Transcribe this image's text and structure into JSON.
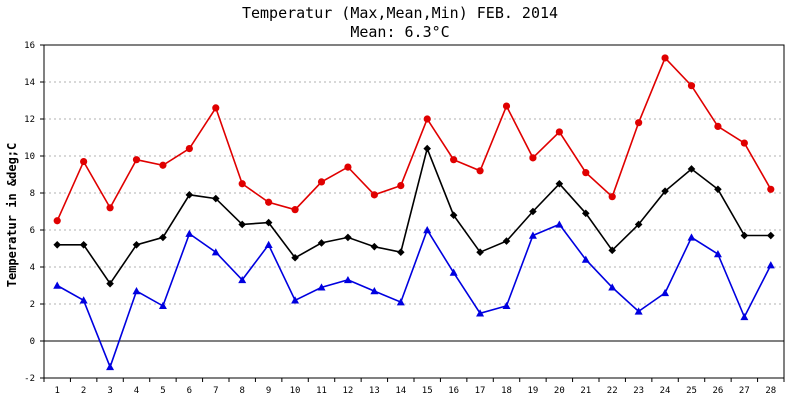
{
  "chart_data": {
    "type": "line",
    "title": "Temperatur (Max,Mean,Min) FEB. 2014",
    "subtitle": "Mean: 6.3°C",
    "ylabel": "Temperatur in &deg;C",
    "xlabel": "",
    "ylim": [
      -2,
      16
    ],
    "yticks": [
      "-2",
      "0",
      "2",
      "4",
      "6",
      "8",
      "10",
      "12",
      "14",
      "16"
    ],
    "grid": true,
    "categories": [
      "1",
      "2",
      "3",
      "4",
      "5",
      "6",
      "7",
      "8",
      "9",
      "10",
      "11",
      "12",
      "13",
      "14",
      "15",
      "16",
      "17",
      "18",
      "19",
      "20",
      "21",
      "22",
      "23",
      "24",
      "25",
      "26",
      "27",
      "28"
    ],
    "series": [
      {
        "key": "max",
        "color": "#e00000",
        "marker": "circle",
        "values": [
          6.5,
          9.7,
          7.2,
          9.8,
          9.5,
          10.4,
          12.6,
          8.5,
          7.5,
          7.1,
          8.6,
          9.4,
          7.9,
          8.4,
          12.0,
          9.8,
          9.2,
          12.7,
          9.9,
          11.3,
          9.1,
          7.8,
          11.8,
          15.3,
          13.8,
          11.6,
          10.7,
          8.2
        ]
      },
      {
        "key": "mean",
        "color": "#000000",
        "marker": "diamond",
        "values": [
          5.2,
          5.2,
          3.1,
          5.2,
          5.6,
          7.9,
          7.7,
          6.3,
          6.4,
          4.5,
          5.3,
          5.6,
          5.1,
          4.8,
          10.4,
          6.8,
          4.8,
          5.4,
          7.0,
          8.5,
          6.9,
          4.9,
          6.3,
          8.1,
          9.3,
          8.2,
          5.7,
          5.7
        ]
      },
      {
        "key": "min",
        "color": "#0000e0",
        "marker": "triangle",
        "values": [
          3.0,
          2.2,
          -1.4,
          2.7,
          1.9,
          5.8,
          4.8,
          3.3,
          5.2,
          2.2,
          2.9,
          3.3,
          2.7,
          2.1,
          6.0,
          3.7,
          1.5,
          1.9,
          5.7,
          6.3,
          4.4,
          2.9,
          1.6,
          2.6,
          5.6,
          4.7,
          1.3,
          4.1
        ]
      }
    ]
  }
}
